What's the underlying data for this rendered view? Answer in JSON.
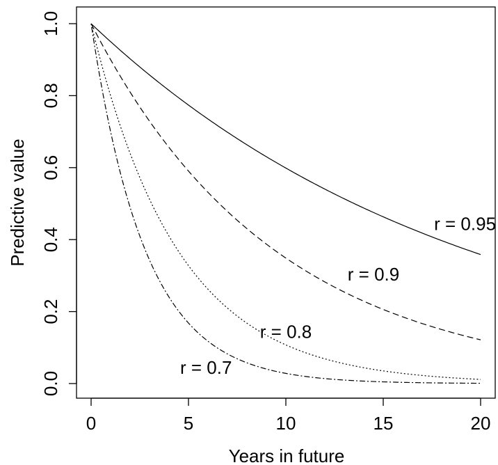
{
  "chart_data": {
    "type": "line",
    "xlabel": "Years in future",
    "ylabel": "Predictive value",
    "xlim": [
      0,
      20
    ],
    "ylim": [
      0,
      1
    ],
    "xticks": [
      "0",
      "5",
      "10",
      "15",
      "20"
    ],
    "yticks": [
      "0.0",
      "0.2",
      "0.4",
      "0.6",
      "0.8",
      "1.0"
    ],
    "grid": false,
    "legend": "none",
    "series": [
      {
        "name": "r = 0.95",
        "rate": 0.95,
        "style": "solid",
        "x": [
          0,
          5,
          10,
          15,
          20
        ],
        "values": [
          1.0,
          0.77,
          0.6,
          0.46,
          0.36
        ]
      },
      {
        "name": "r = 0.9",
        "rate": 0.9,
        "style": "dashed",
        "x": [
          0,
          5,
          10,
          15,
          20
        ],
        "values": [
          1.0,
          0.59,
          0.35,
          0.21,
          0.12
        ]
      },
      {
        "name": "r = 0.8",
        "rate": 0.8,
        "style": "dotted",
        "x": [
          0,
          5,
          10,
          15,
          20
        ],
        "values": [
          1.0,
          0.33,
          0.11,
          0.04,
          0.01
        ]
      },
      {
        "name": "r = 0.7",
        "rate": 0.7,
        "style": "dashdot",
        "x": [
          0,
          5,
          10,
          15,
          20
        ],
        "values": [
          1.0,
          0.17,
          0.03,
          0.005,
          0.001
        ]
      }
    ],
    "annotations": [
      {
        "text": "r = 0.95",
        "x": 19.2,
        "y": 0.44
      },
      {
        "text": "r = 0.9",
        "x": 14.5,
        "y": 0.3
      },
      {
        "text": "r = 0.8",
        "x": 10.0,
        "y": 0.14
      },
      {
        "text": "r = 0.7",
        "x": 5.9,
        "y": 0.04
      }
    ]
  }
}
